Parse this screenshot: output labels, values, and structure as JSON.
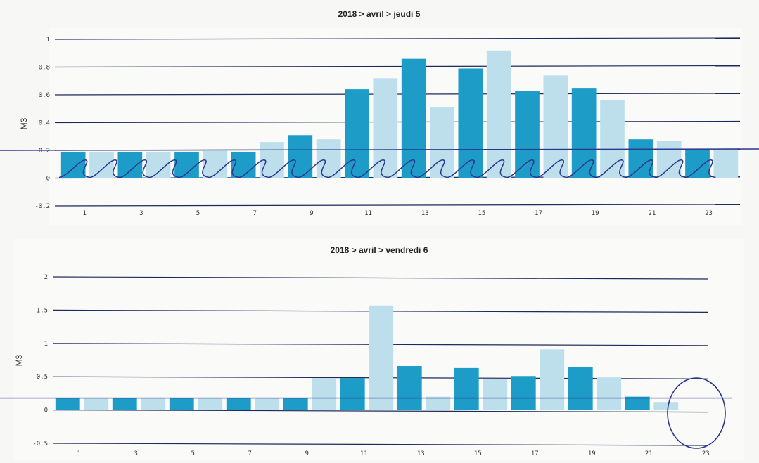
{
  "colors": {
    "dark_bar": "#1c9cc6",
    "light_bar": "#bddfec",
    "grid": "#1e2a5a",
    "annotation": "#2b3590"
  },
  "chart_data": [
    {
      "type": "bar",
      "title": "2018 > avril > jeudi 5",
      "ylabel": "M3",
      "xlabel": "",
      "ylim": [
        -0.2,
        1
      ],
      "yticks": [
        "1",
        "0.8",
        "0.6",
        "0.4",
        "0.2",
        "0",
        "-0.2"
      ],
      "ytick_values": [
        1,
        0.8,
        0.6,
        0.4,
        0.2,
        0,
        -0.2
      ],
      "categories": [
        "0",
        "1",
        "2",
        "3",
        "4",
        "5",
        "6",
        "7",
        "8",
        "9",
        "10",
        "11",
        "12",
        "13",
        "14",
        "15",
        "16",
        "17",
        "18",
        "19",
        "20",
        "21",
        "22",
        "23"
      ],
      "xtick_labels": [
        "1",
        "3",
        "5",
        "7",
        "9",
        "11",
        "13",
        "15",
        "17",
        "19",
        "21",
        "23"
      ],
      "values": [
        0.19,
        0.19,
        0.19,
        0.19,
        0.19,
        0.2,
        0.19,
        0.26,
        0.31,
        0.28,
        0.64,
        0.72,
        0.86,
        0.51,
        0.79,
        0.92,
        0.63,
        0.74,
        0.65,
        0.56,
        0.28,
        0.27,
        0.21,
        0.21
      ],
      "annotation": "hand-drawn line at 0.2 with wavy scribble below"
    },
    {
      "type": "bar",
      "title": "2018 > avril > vendredi 6",
      "ylabel": "M3",
      "xlabel": "",
      "ylim": [
        -0.5,
        2
      ],
      "yticks": [
        "2",
        "1.5",
        "1",
        "0.5",
        "0",
        "-0.5"
      ],
      "ytick_values": [
        2,
        1.5,
        1,
        0.5,
        0,
        -0.5
      ],
      "categories": [
        "0",
        "1",
        "2",
        "3",
        "4",
        "5",
        "6",
        "7",
        "8",
        "9",
        "10",
        "11",
        "12",
        "13",
        "14",
        "15",
        "16",
        "17",
        "18",
        "19",
        "20",
        "21",
        "22",
        "23"
      ],
      "xtick_labels": [
        "1",
        "3",
        "5",
        "7",
        "9",
        "11",
        "13",
        "15",
        "17",
        "19",
        "21",
        "23"
      ],
      "values": [
        0.18,
        0.18,
        0.18,
        0.18,
        0.18,
        0.18,
        0.18,
        0.18,
        0.18,
        0.48,
        0.48,
        1.57,
        0.66,
        0.2,
        0.63,
        0.47,
        0.51,
        0.91,
        0.64,
        0.49,
        0.2,
        0.12,
        0,
        0
      ],
      "annotation": "hand-drawn line at about 0.18 and a circle around hours 22-23"
    }
  ]
}
